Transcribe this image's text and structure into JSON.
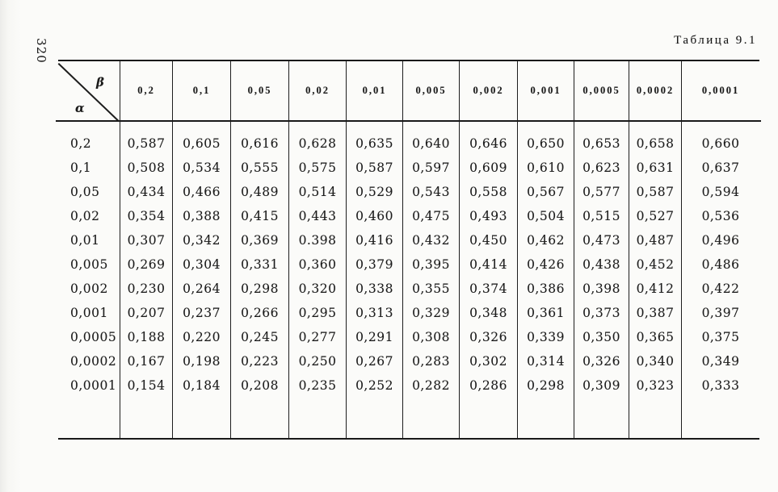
{
  "page": {
    "number": "320",
    "table_label": "Таблица 9.1"
  },
  "header": {
    "beta_symbol": "β",
    "alpha_symbol": "α",
    "col_labels": [
      "0,2",
      "0,1",
      "0,05",
      "0,02",
      "0,01",
      "0,005",
      "0,002",
      "0,001",
      "0,0005",
      "0,0002",
      "0,0001"
    ]
  },
  "table": {
    "rows": [
      {
        "alpha": "0,2",
        "values": [
          "0,587",
          "0,605",
          "0,616",
          "0,628",
          "0,635",
          "0,640",
          "0,646",
          "0,650",
          "0,653",
          "0,658",
          "0,660"
        ]
      },
      {
        "alpha": "0,1",
        "values": [
          "0,508",
          "0,534",
          "0,555",
          "0,575",
          "0,587",
          "0,597",
          "0,609",
          "0,610",
          "0,623",
          "0,631",
          "0,637"
        ]
      },
      {
        "alpha": "0,05",
        "values": [
          "0,434",
          "0,466",
          "0,489",
          "0,514",
          "0,529",
          "0,543",
          "0,558",
          "0,567",
          "0,577",
          "0,587",
          "0,594"
        ]
      },
      {
        "alpha": "0,02",
        "values": [
          "0,354",
          "0,388",
          "0,415",
          "0,443",
          "0,460",
          "0,475",
          "0,493",
          "0,504",
          "0,515",
          "0,527",
          "0,536"
        ]
      },
      {
        "alpha": "0,01",
        "values": [
          "0,307",
          "0,342",
          "0,369",
          "0.398",
          "0,416",
          "0,432",
          "0,450",
          "0,462",
          "0,473",
          "0,487",
          "0,496"
        ]
      },
      {
        "alpha": "0,005",
        "values": [
          "0,269",
          "0,304",
          "0,331",
          "0,360",
          "0,379",
          "0,395",
          "0,414",
          "0,426",
          "0,438",
          "0,452",
          "0,486"
        ]
      },
      {
        "alpha": "0,002",
        "values": [
          "0,230",
          "0,264",
          "0,298",
          "0,320",
          "0,338",
          "0,355",
          "0,374",
          "0,386",
          "0,398",
          "0,412",
          "0,422"
        ]
      },
      {
        "alpha": "0,001",
        "values": [
          "0,207",
          "0,237",
          "0,266",
          "0,295",
          "0,313",
          "0,329",
          "0,348",
          "0,361",
          "0,373",
          "0,387",
          "0,397"
        ]
      },
      {
        "alpha": "0,0005",
        "values": [
          "0,188",
          "0,220",
          "0,245",
          "0,277",
          "0,291",
          "0,308",
          "0,326",
          "0,339",
          "0,350",
          "0,365",
          "0,375"
        ]
      },
      {
        "alpha": "0,0002",
        "values": [
          "0,167",
          "0,198",
          "0,223",
          "0,250",
          "0,267",
          "0,283",
          "0,302",
          "0,314",
          "0,326",
          "0,340",
          "0,349"
        ]
      },
      {
        "alpha": "0,0001",
        "values": [
          "0,154",
          "0,184",
          "0,208",
          "0,235",
          "0,252",
          "0,282",
          "0,286",
          "0,298",
          "0,309",
          "0,323",
          "0,333"
        ]
      }
    ]
  }
}
